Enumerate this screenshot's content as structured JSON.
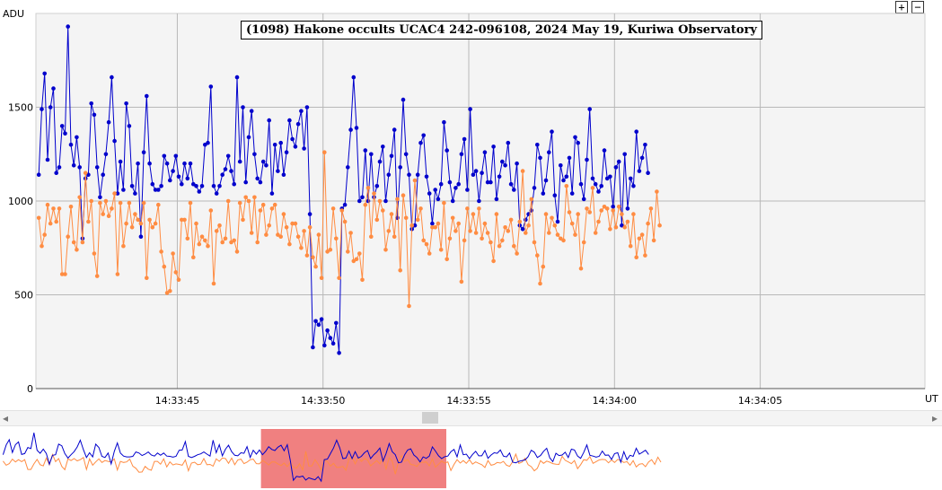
{
  "title": "(1098) Hakone occults UCAC4 242-096108, 2024 May 19, Kuriwa Observatory",
  "zoom_in_label": "+",
  "zoom_out_label": "−",
  "scroll_left_label": "◂",
  "scroll_right_label": "▸",
  "colors": {
    "target": "#0000cc",
    "comparison": "#ff8c42",
    "grid": "#b8b8b8",
    "plot_bg": "#f4f4f4",
    "selection": "#f08080"
  },
  "chart_data": {
    "type": "line",
    "title": "(1098) Hakone occults UCAC4 242-096108, 2024 May 19, Kuriwa Observatory",
    "ylabel": "ADU",
    "xlabel": "UT",
    "ylim": [
      0,
      2000
    ],
    "y_ticks": [
      0,
      500,
      1000,
      1500
    ],
    "x_ticks": [
      "14:33:45",
      "14:33:50",
      "14:33:55",
      "14:34:00",
      "14:34:05"
    ],
    "x_tick_seconds": [
      45,
      50,
      55,
      60,
      65
    ],
    "xlim_seconds": [
      40.15,
      70.65
    ],
    "x_step_seconds": 0.1,
    "grid": true,
    "series": [
      {
        "key": "target",
        "values": [
          1140,
          1490,
          1680,
          1220,
          1500,
          1600,
          1150,
          1180,
          1400,
          1360,
          1930,
          1300,
          1190,
          1340,
          1180,
          800,
          1120,
          1140,
          1520,
          1460,
          1180,
          1020,
          1140,
          1250,
          1420,
          1660,
          1320,
          1040,
          1210,
          1060,
          1520,
          1400,
          1080,
          1040,
          1200,
          810,
          1260,
          1560,
          1200,
          1090,
          1060,
          1060,
          1080,
          1240,
          1200,
          1110,
          1160,
          1240,
          1130,
          1090,
          1200,
          1120,
          1200,
          1090,
          1080,
          1050,
          1080,
          1300,
          1310,
          1610,
          1080,
          1040,
          1080,
          1140,
          1170,
          1240,
          1160,
          1090,
          1660,
          1210,
          1500,
          1100,
          1340,
          1480,
          1250,
          1120,
          1100,
          1210,
          1190,
          1430,
          1040,
          1300,
          1160,
          1310,
          1140,
          1260,
          1430,
          1330,
          1290,
          1410,
          1480,
          1280,
          1500,
          930,
          220,
          360,
          340,
          370,
          230,
          310,
          270,
          240,
          350,
          190,
          960,
          980,
          1180,
          1380,
          1660,
          1390,
          1000,
          1020,
          1270,
          1000,
          1250,
          1020,
          1080,
          1210,
          1290,
          1000,
          1140,
          1240,
          1380,
          910,
          1180,
          1540,
          1250,
          1140,
          850,
          870,
          1140,
          1310,
          1350,
          1130,
          1040,
          880,
          1060,
          1010,
          1090,
          1420,
          1270,
          1100,
          1000,
          1070,
          1090,
          1250,
          1330,
          1060,
          1490,
          1140,
          1160,
          1000,
          1150,
          1260,
          1100,
          1100,
          1290,
          1010,
          1130,
          1210,
          1190,
          1310,
          1090,
          1060,
          1200,
          870,
          850,
          900,
          930,
          950,
          1070,
          1300,
          1230,
          1040,
          1110,
          1260,
          1370,
          1030,
          890,
          1190,
          1110,
          1130,
          1230,
          1040,
          1340,
          1310,
          1090,
          1010,
          1220,
          1490,
          1120,
          1090,
          1050,
          1080,
          1270,
          1120,
          1130,
          970,
          1180,
          1210,
          870,
          1250,
          960,
          1120,
          1080,
          1370,
          1160,
          1230,
          1300,
          1150
        ]
      },
      {
        "key": "comparison",
        "values": [
          910,
          760,
          820,
          980,
          880,
          960,
          890,
          960,
          610,
          610,
          810,
          970,
          780,
          740,
          1020,
          780,
          1150,
          890,
          1000,
          720,
          600,
          990,
          930,
          1000,
          920,
          960,
          1040,
          610,
          990,
          760,
          880,
          990,
          860,
          930,
          900,
          880,
          990,
          590,
          900,
          860,
          880,
          980,
          730,
          650,
          510,
          520,
          720,
          620,
          580,
          900,
          900,
          800,
          990,
          700,
          880,
          770,
          810,
          790,
          760,
          950,
          560,
          840,
          870,
          780,
          800,
          1000,
          780,
          790,
          730,
          990,
          900,
          1020,
          1000,
          830,
          1020,
          780,
          950,
          980,
          820,
          870,
          960,
          980,
          820,
          810,
          930,
          860,
          770,
          880,
          880,
          810,
          750,
          840,
          710,
          860,
          700,
          650,
          820,
          590,
          1260,
          730,
          740,
          960,
          800,
          590,
          950,
          890,
          730,
          830,
          680,
          690,
          720,
          580,
          980,
          1070,
          810,
          1040,
          900,
          1000,
          950,
          740,
          840,
          930,
          810,
          1010,
          630,
          1030,
          910,
          440,
          870,
          1110,
          900,
          960,
          790,
          770,
          720,
          860,
          860,
          880,
          740,
          990,
          690,
          800,
          910,
          840,
          880,
          570,
          790,
          960,
          840,
          930,
          830,
          960,
          800,
          880,
          830,
          780,
          680,
          930,
          760,
          790,
          860,
          840,
          900,
          760,
          720,
          890,
          1160,
          830,
          870,
          1010,
          780,
          710,
          560,
          650,
          930,
          830,
          910,
          870,
          820,
          800,
          790,
          1080,
          940,
          880,
          820,
          930,
          640,
          780,
          960,
          940,
          1070,
          830,
          890,
          950,
          970,
          960,
          850,
          950,
          860,
          970,
          930,
          860,
          890,
          760,
          930,
          700,
          800,
          820,
          710,
          880,
          960,
          790,
          1050,
          870
        ]
      }
    ]
  },
  "overview": {
    "selection_seconds": [
      48.6,
      54.6
    ]
  }
}
